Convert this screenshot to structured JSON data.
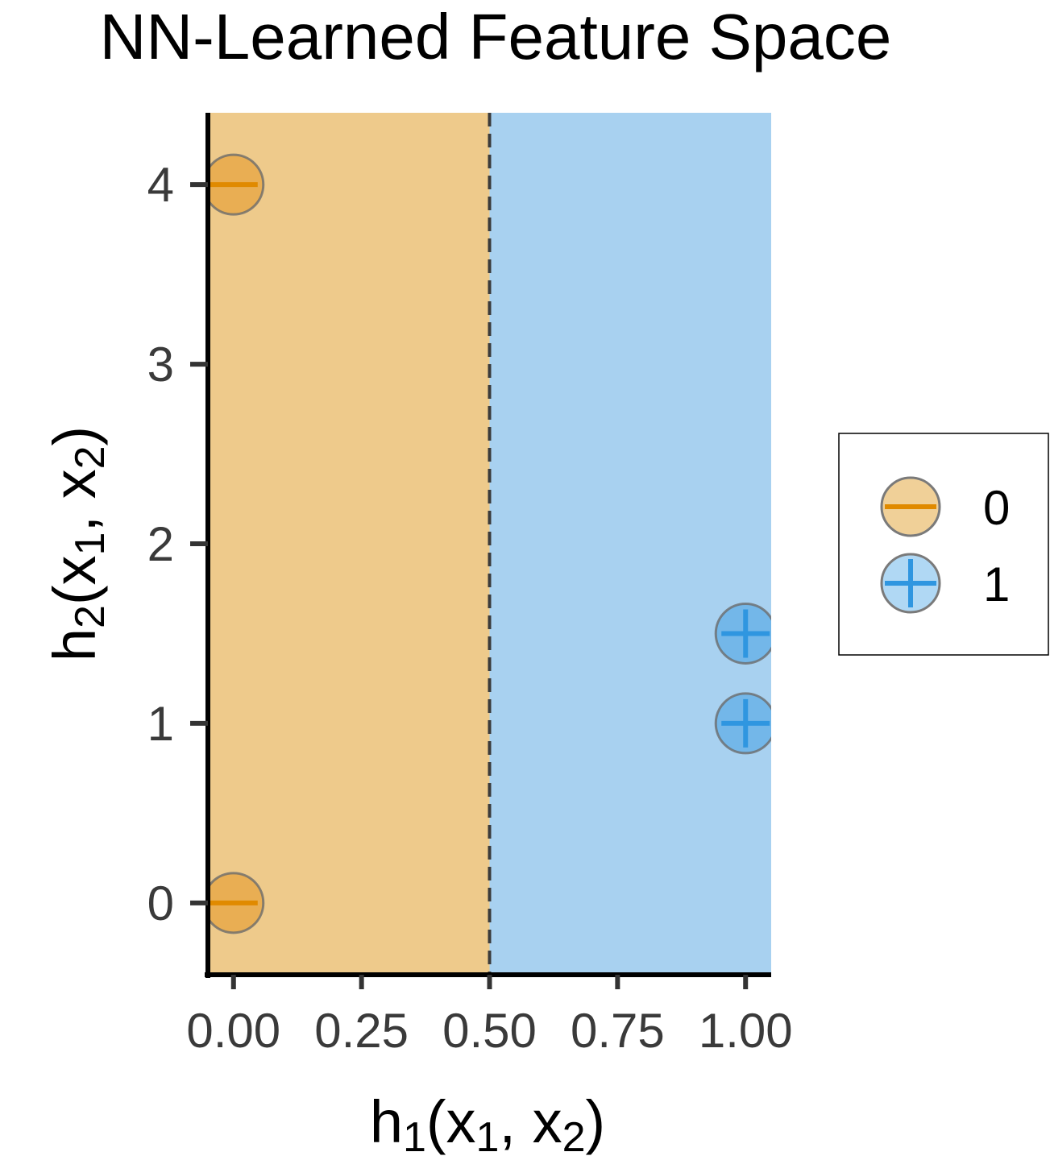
{
  "chart_data": {
    "type": "scatter",
    "title": "NN-Learned Feature Space",
    "xlabel": {
      "base": "h",
      "sub": "1",
      "args": [
        "x",
        "1",
        "x",
        "2"
      ]
    },
    "ylabel": {
      "base": "h",
      "sub": "2",
      "args": [
        "x",
        "1",
        "x",
        "2"
      ]
    },
    "xlim": [
      -0.05,
      1.05
    ],
    "ylim": [
      -0.4,
      4.4
    ],
    "x_ticks": [
      0,
      0.25,
      0.5,
      0.75,
      1
    ],
    "x_tick_labels": [
      "0.00",
      "0.25",
      "0.50",
      "0.75",
      "1.00"
    ],
    "y_ticks": [
      0,
      1,
      2,
      3,
      4
    ],
    "y_tick_labels": [
      "0",
      "1",
      "2",
      "3",
      "4"
    ],
    "decision_boundary_x": 0.5,
    "regions": [
      {
        "class": "0",
        "from": -0.05,
        "to": 0.5,
        "color": "#eeca8b"
      },
      {
        "class": "1",
        "from": 0.5,
        "to": 1.05,
        "color": "#a8d1f0"
      }
    ],
    "series": [
      {
        "name": "0",
        "symbol": "minus",
        "fill": "#e8ab4d",
        "symbol_color": "#e08a00",
        "points": [
          {
            "x": 0,
            "y": 4
          },
          {
            "x": 0,
            "y": 0
          }
        ]
      },
      {
        "name": "1",
        "symbol": "plus",
        "fill": "#6db4e8",
        "symbol_color": "#2f96e0",
        "points": [
          {
            "x": 1,
            "y": 1.5
          },
          {
            "x": 1,
            "y": 1
          }
        ]
      }
    ],
    "legend": {
      "position": "right",
      "entries": [
        {
          "label": "0",
          "symbol": "minus",
          "fill": "#f0d098",
          "symbol_color": "#e08a00"
        },
        {
          "label": "1",
          "symbol": "plus",
          "fill": "#b0d8f4",
          "symbol_color": "#2f96e0"
        }
      ]
    },
    "grid": false
  }
}
